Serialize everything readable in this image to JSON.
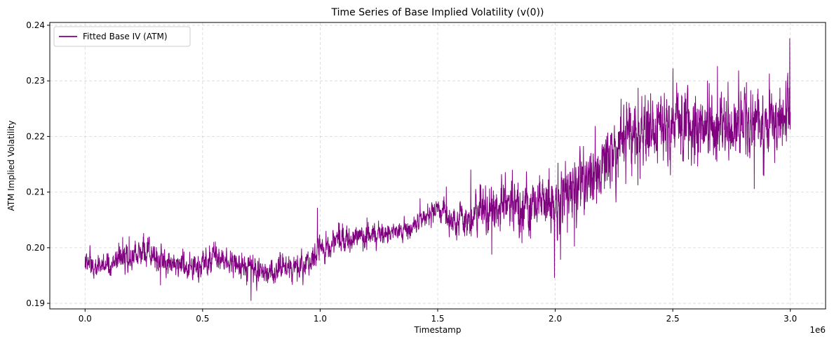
{
  "chart_data": {
    "type": "line",
    "title": "Time Series of Base Implied Volatility (v(0))",
    "xlabel": "Timestamp",
    "ylabel": "ATM Implied Volatility",
    "x_offset_label": "1e6",
    "xlim": [
      -0.15,
      3.15
    ],
    "ylim": [
      0.189,
      0.2405
    ],
    "x_scale_factor": 1000000,
    "x_ticks": [
      0.0,
      0.5,
      1.0,
      1.5,
      2.0,
      2.5,
      3.0
    ],
    "x_tick_labels": [
      "0.0",
      "0.5",
      "1.0",
      "1.5",
      "2.0",
      "2.5",
      "3.0"
    ],
    "y_ticks": [
      0.19,
      0.2,
      0.21,
      0.22,
      0.23,
      0.24
    ],
    "y_tick_labels": [
      "0.19",
      "0.20",
      "0.21",
      "0.22",
      "0.23",
      "0.24"
    ],
    "grid": true,
    "legend_position": "top-left",
    "series": [
      {
        "name": "Fitted Base IV (ATM)",
        "color": "#800080",
        "trend": {
          "x": [
            0.0,
            0.05,
            0.1,
            0.2,
            0.25,
            0.3,
            0.4,
            0.5,
            0.55,
            0.6,
            0.7,
            0.8,
            0.9,
            0.95,
            1.0,
            1.1,
            1.2,
            1.3,
            1.4,
            1.45,
            1.5,
            1.55,
            1.6,
            1.7,
            1.8,
            1.9,
            2.0,
            2.1,
            2.2,
            2.3,
            2.4,
            2.5,
            2.6,
            2.7,
            2.8,
            2.9,
            3.0
          ],
          "y": [
            0.1975,
            0.1965,
            0.1968,
            0.1985,
            0.1995,
            0.198,
            0.1968,
            0.197,
            0.1985,
            0.1975,
            0.1962,
            0.196,
            0.1965,
            0.197,
            0.2,
            0.2015,
            0.2022,
            0.2028,
            0.204,
            0.2055,
            0.2075,
            0.205,
            0.2048,
            0.2065,
            0.2075,
            0.2072,
            0.2085,
            0.2115,
            0.2155,
            0.2205,
            0.222,
            0.2215,
            0.2225,
            0.222,
            0.2228,
            0.223,
            0.2245
          ]
        },
        "spread": {
          "x": [
            0.0,
            0.5,
            1.0,
            1.4,
            1.5,
            1.6,
            1.8,
            2.0,
            2.2,
            2.4,
            2.6,
            3.0
          ],
          "y": [
            0.0011,
            0.0011,
            0.0012,
            0.0008,
            0.0008,
            0.0016,
            0.0022,
            0.0026,
            0.0029,
            0.0031,
            0.003,
            0.003
          ]
        }
      }
    ]
  }
}
